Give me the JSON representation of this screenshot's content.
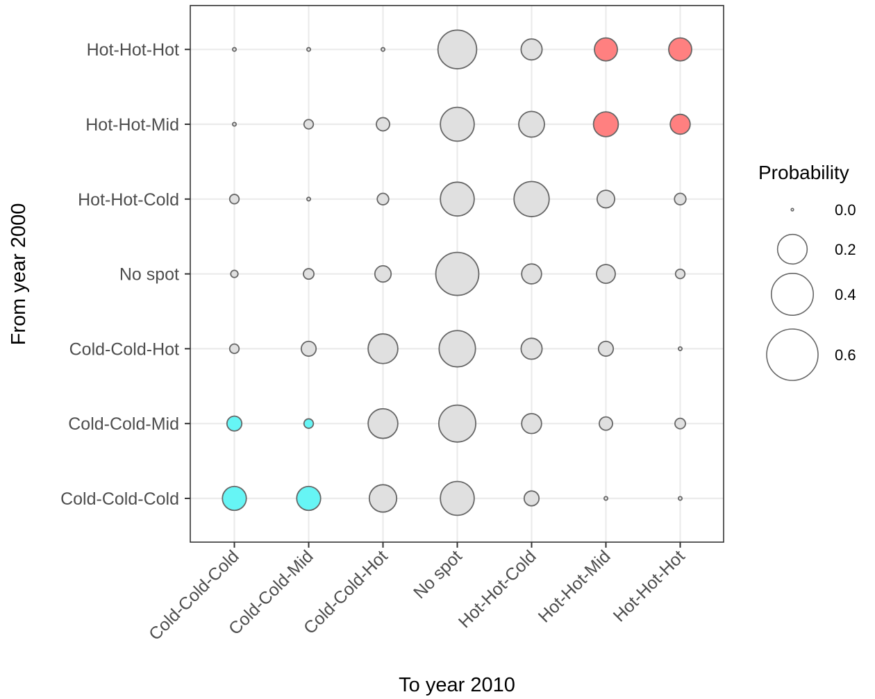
{
  "chart_data": {
    "type": "scatter",
    "xlabel": "To year 2010",
    "ylabel": "From year 2000",
    "x_categories": [
      "Cold-Cold-Cold",
      "Cold-Cold-Mid",
      "Cold-Cold-Hot",
      "No spot",
      "Hot-Hot-Cold",
      "Hot-Hot-Mid",
      "Hot-Hot-Hot"
    ],
    "y_categories": [
      "Cold-Cold-Cold",
      "Cold-Cold-Mid",
      "Cold-Cold-Hot",
      "No spot",
      "Hot-Hot-Cold",
      "Hot-Hot-Mid",
      "Hot-Hot-Hot"
    ],
    "size_legend": {
      "title": "Probability",
      "values": [
        0.0,
        0.2,
        0.4,
        0.6
      ],
      "labels": [
        "0.0",
        "0.2",
        "0.4",
        "0.6"
      ]
    },
    "size_max_value": 0.6,
    "grid": true,
    "legend_position": "right",
    "colors": {
      "default": "#e0e0e0",
      "hot": "#ff8080",
      "cold": "#66f5f5",
      "outline": "#666666"
    },
    "points": [
      {
        "from": "Hot-Hot-Hot",
        "to": "Cold-Cold-Cold",
        "p": 0.003,
        "color": "default"
      },
      {
        "from": "Hot-Hot-Hot",
        "to": "Cold-Cold-Mid",
        "p": 0.003,
        "color": "default"
      },
      {
        "from": "Hot-Hot-Hot",
        "to": "Cold-Cold-Hot",
        "p": 0.003,
        "color": "default"
      },
      {
        "from": "Hot-Hot-Hot",
        "to": "No spot",
        "p": 0.34,
        "color": "default"
      },
      {
        "from": "Hot-Hot-Hot",
        "to": "Hot-Hot-Cold",
        "p": 0.1,
        "color": "default"
      },
      {
        "from": "Hot-Hot-Hot",
        "to": "Hot-Hot-Mid",
        "p": 0.12,
        "color": "hot"
      },
      {
        "from": "Hot-Hot-Hot",
        "to": "Hot-Hot-Hot",
        "p": 0.12,
        "color": "hot"
      },
      {
        "from": "Hot-Hot-Mid",
        "to": "Cold-Cold-Cold",
        "p": 0.003,
        "color": "default"
      },
      {
        "from": "Hot-Hot-Mid",
        "to": "Cold-Cold-Mid",
        "p": 0.02,
        "color": "default"
      },
      {
        "from": "Hot-Hot-Mid",
        "to": "Cold-Cold-Hot",
        "p": 0.04,
        "color": "default"
      },
      {
        "from": "Hot-Hot-Mid",
        "to": "No spot",
        "p": 0.26,
        "color": "default"
      },
      {
        "from": "Hot-Hot-Mid",
        "to": "Hot-Hot-Cold",
        "p": 0.15,
        "color": "default"
      },
      {
        "from": "Hot-Hot-Mid",
        "to": "Hot-Hot-Mid",
        "p": 0.14,
        "color": "hot"
      },
      {
        "from": "Hot-Hot-Mid",
        "to": "Hot-Hot-Hot",
        "p": 0.09,
        "color": "hot"
      },
      {
        "from": "Hot-Hot-Cold",
        "to": "Cold-Cold-Cold",
        "p": 0.02,
        "color": "default"
      },
      {
        "from": "Hot-Hot-Cold",
        "to": "Cold-Cold-Mid",
        "p": 0.003,
        "color": "default"
      },
      {
        "from": "Hot-Hot-Cold",
        "to": "Cold-Cold-Hot",
        "p": 0.03,
        "color": "default"
      },
      {
        "from": "Hot-Hot-Cold",
        "to": "No spot",
        "p": 0.26,
        "color": "default"
      },
      {
        "from": "Hot-Hot-Cold",
        "to": "Hot-Hot-Cold",
        "p": 0.28,
        "color": "default"
      },
      {
        "from": "Hot-Hot-Cold",
        "to": "Hot-Hot-Mid",
        "p": 0.07,
        "color": "default"
      },
      {
        "from": "Hot-Hot-Cold",
        "to": "Hot-Hot-Hot",
        "p": 0.03,
        "color": "default"
      },
      {
        "from": "No spot",
        "to": "Cold-Cold-Cold",
        "p": 0.012,
        "color": "default"
      },
      {
        "from": "No spot",
        "to": "Cold-Cold-Mid",
        "p": 0.025,
        "color": "default"
      },
      {
        "from": "No spot",
        "to": "Cold-Cold-Hot",
        "p": 0.06,
        "color": "default"
      },
      {
        "from": "No spot",
        "to": "No spot",
        "p": 0.42,
        "color": "default"
      },
      {
        "from": "No spot",
        "to": "Hot-Hot-Cold",
        "p": 0.09,
        "color": "default"
      },
      {
        "from": "No spot",
        "to": "Hot-Hot-Mid",
        "p": 0.08,
        "color": "default"
      },
      {
        "from": "No spot",
        "to": "Hot-Hot-Hot",
        "p": 0.02,
        "color": "default"
      },
      {
        "from": "Cold-Cold-Hot",
        "to": "Cold-Cold-Cold",
        "p": 0.02,
        "color": "default"
      },
      {
        "from": "Cold-Cold-Hot",
        "to": "Cold-Cold-Mid",
        "p": 0.05,
        "color": "default"
      },
      {
        "from": "Cold-Cold-Hot",
        "to": "Cold-Cold-Hot",
        "p": 0.2,
        "color": "default"
      },
      {
        "from": "Cold-Cold-Hot",
        "to": "No spot",
        "p": 0.3,
        "color": "default"
      },
      {
        "from": "Cold-Cold-Hot",
        "to": "Hot-Hot-Cold",
        "p": 0.1,
        "color": "default"
      },
      {
        "from": "Cold-Cold-Hot",
        "to": "Hot-Hot-Mid",
        "p": 0.05,
        "color": "default"
      },
      {
        "from": "Cold-Cold-Hot",
        "to": "Hot-Hot-Hot",
        "p": 0.003,
        "color": "default"
      },
      {
        "from": "Cold-Cold-Mid",
        "to": "Cold-Cold-Cold",
        "p": 0.05,
        "color": "cold"
      },
      {
        "from": "Cold-Cold-Mid",
        "to": "Cold-Cold-Mid",
        "p": 0.02,
        "color": "cold"
      },
      {
        "from": "Cold-Cold-Mid",
        "to": "Cold-Cold-Hot",
        "p": 0.2,
        "color": "default"
      },
      {
        "from": "Cold-Cold-Mid",
        "to": "No spot",
        "p": 0.31,
        "color": "default"
      },
      {
        "from": "Cold-Cold-Mid",
        "to": "Hot-Hot-Cold",
        "p": 0.09,
        "color": "default"
      },
      {
        "from": "Cold-Cold-Mid",
        "to": "Hot-Hot-Mid",
        "p": 0.04,
        "color": "default"
      },
      {
        "from": "Cold-Cold-Mid",
        "to": "Hot-Hot-Hot",
        "p": 0.025,
        "color": "default"
      },
      {
        "from": "Cold-Cold-Cold",
        "to": "Cold-Cold-Cold",
        "p": 0.13,
        "color": "cold"
      },
      {
        "from": "Cold-Cold-Cold",
        "to": "Cold-Cold-Mid",
        "p": 0.13,
        "color": "cold"
      },
      {
        "from": "Cold-Cold-Cold",
        "to": "Cold-Cold-Hot",
        "p": 0.17,
        "color": "default"
      },
      {
        "from": "Cold-Cold-Cold",
        "to": "No spot",
        "p": 0.26,
        "color": "default"
      },
      {
        "from": "Cold-Cold-Cold",
        "to": "Hot-Hot-Cold",
        "p": 0.05,
        "color": "default"
      },
      {
        "from": "Cold-Cold-Cold",
        "to": "Hot-Hot-Mid",
        "p": 0.003,
        "color": "default"
      },
      {
        "from": "Cold-Cold-Cold",
        "to": "Hot-Hot-Hot",
        "p": 0.003,
        "color": "default"
      }
    ]
  }
}
